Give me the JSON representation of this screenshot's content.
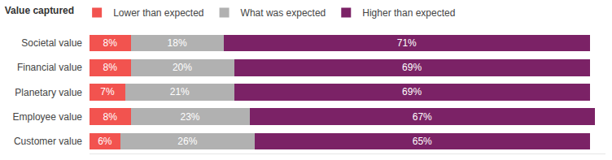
{
  "chart_data": {
    "type": "bar",
    "orientation": "horizontal",
    "stacked": true,
    "legend_title": "Value captured",
    "legend": "top-left",
    "categories": [
      "Societal value",
      "Financial value",
      "Planetary value",
      "Employee value",
      "Customer value"
    ],
    "series": [
      {
        "name": "Lower than expected",
        "color": "#f2534f",
        "values": [
          8,
          8,
          7,
          8,
          6
        ],
        "value_labels": [
          "8%",
          "8%",
          "7%",
          "8%",
          "6%"
        ]
      },
      {
        "name": "What was expected",
        "color": "#b1b1b1",
        "values": [
          18,
          20,
          21,
          23,
          26
        ],
        "value_labels": [
          "18%",
          "20%",
          "21%",
          "23%",
          "26%"
        ]
      },
      {
        "name": "Higher than expected",
        "color": "#7b2266",
        "values": [
          71,
          69,
          69,
          67,
          65
        ],
        "value_labels": [
          "71%",
          "69%",
          "69%",
          "67%",
          "65%"
        ]
      }
    ],
    "xlim": [
      0,
      100
    ],
    "data_labels": true,
    "grid": false,
    "tick_labels": "y"
  }
}
